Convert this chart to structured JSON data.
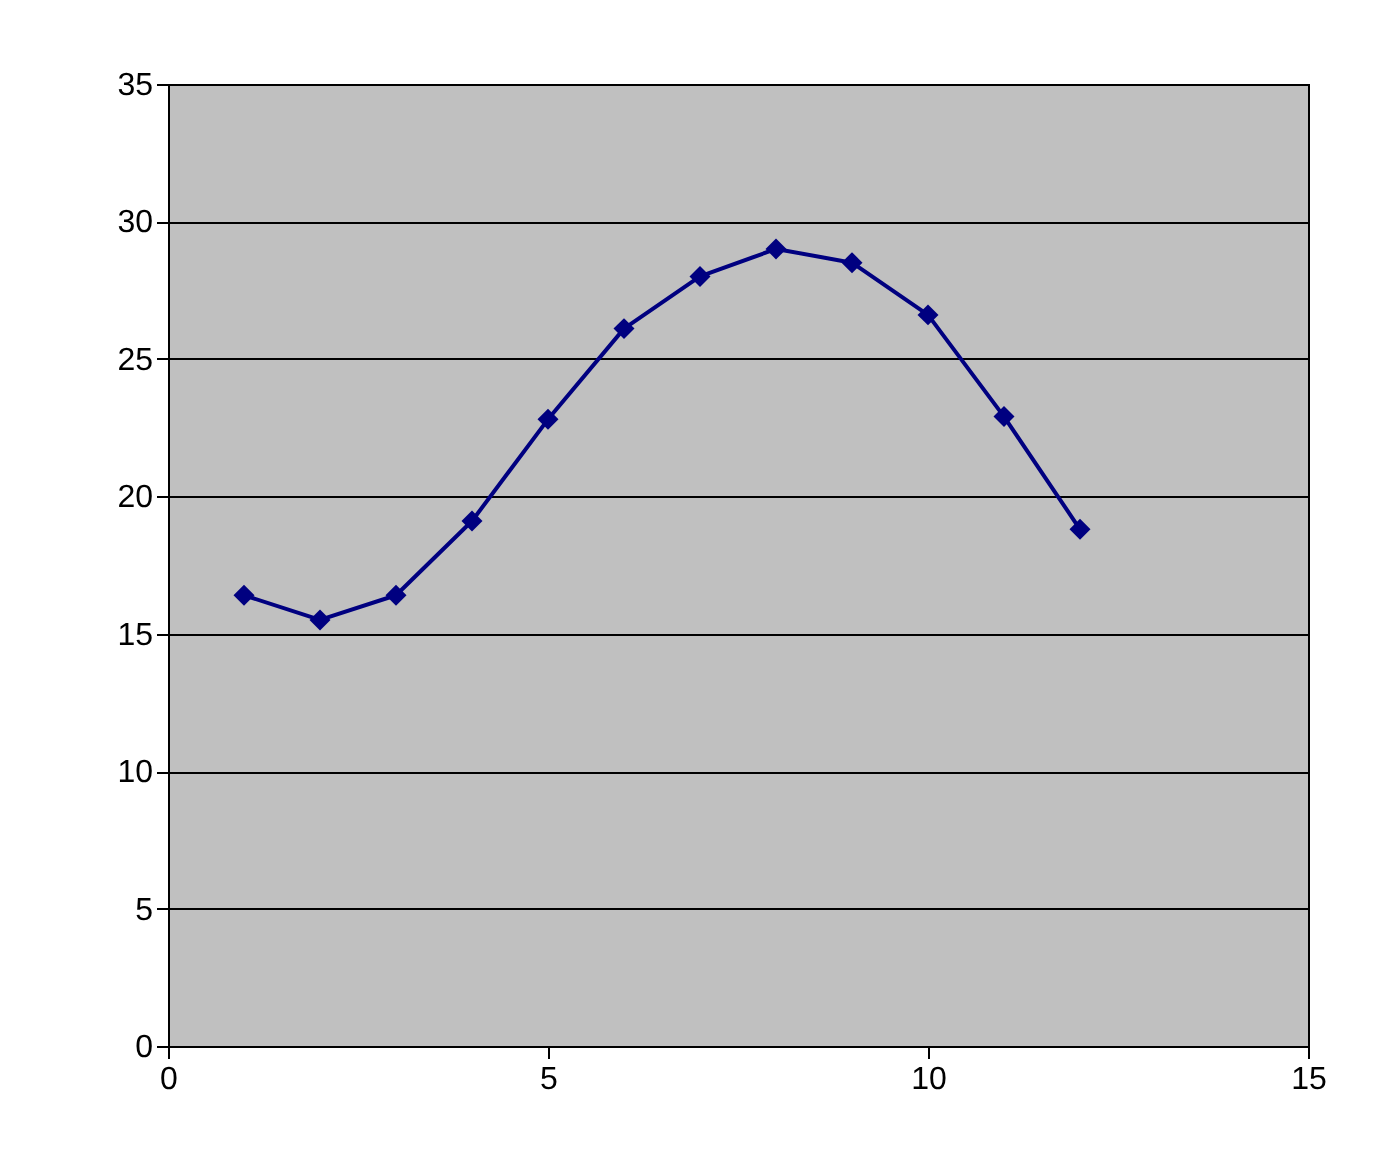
{
  "chart_data": {
    "type": "line",
    "x": [
      1,
      2,
      3,
      4,
      5,
      6,
      7,
      8,
      9,
      10,
      11,
      12
    ],
    "series": [
      {
        "color": "#000080",
        "values": [
          16.4,
          15.5,
          16.4,
          19.1,
          22.8,
          26.1,
          28.0,
          29.0,
          28.5,
          26.6,
          22.9,
          18.8
        ]
      }
    ],
    "xlim": [
      0,
      15
    ],
    "xticks": [
      0,
      5,
      10,
      15
    ],
    "ylim": [
      0,
      35
    ],
    "yticks": [
      0,
      5,
      10,
      15,
      20,
      25,
      30,
      35
    ],
    "grid": "y",
    "marker": "diamond",
    "line_style": "solid"
  }
}
